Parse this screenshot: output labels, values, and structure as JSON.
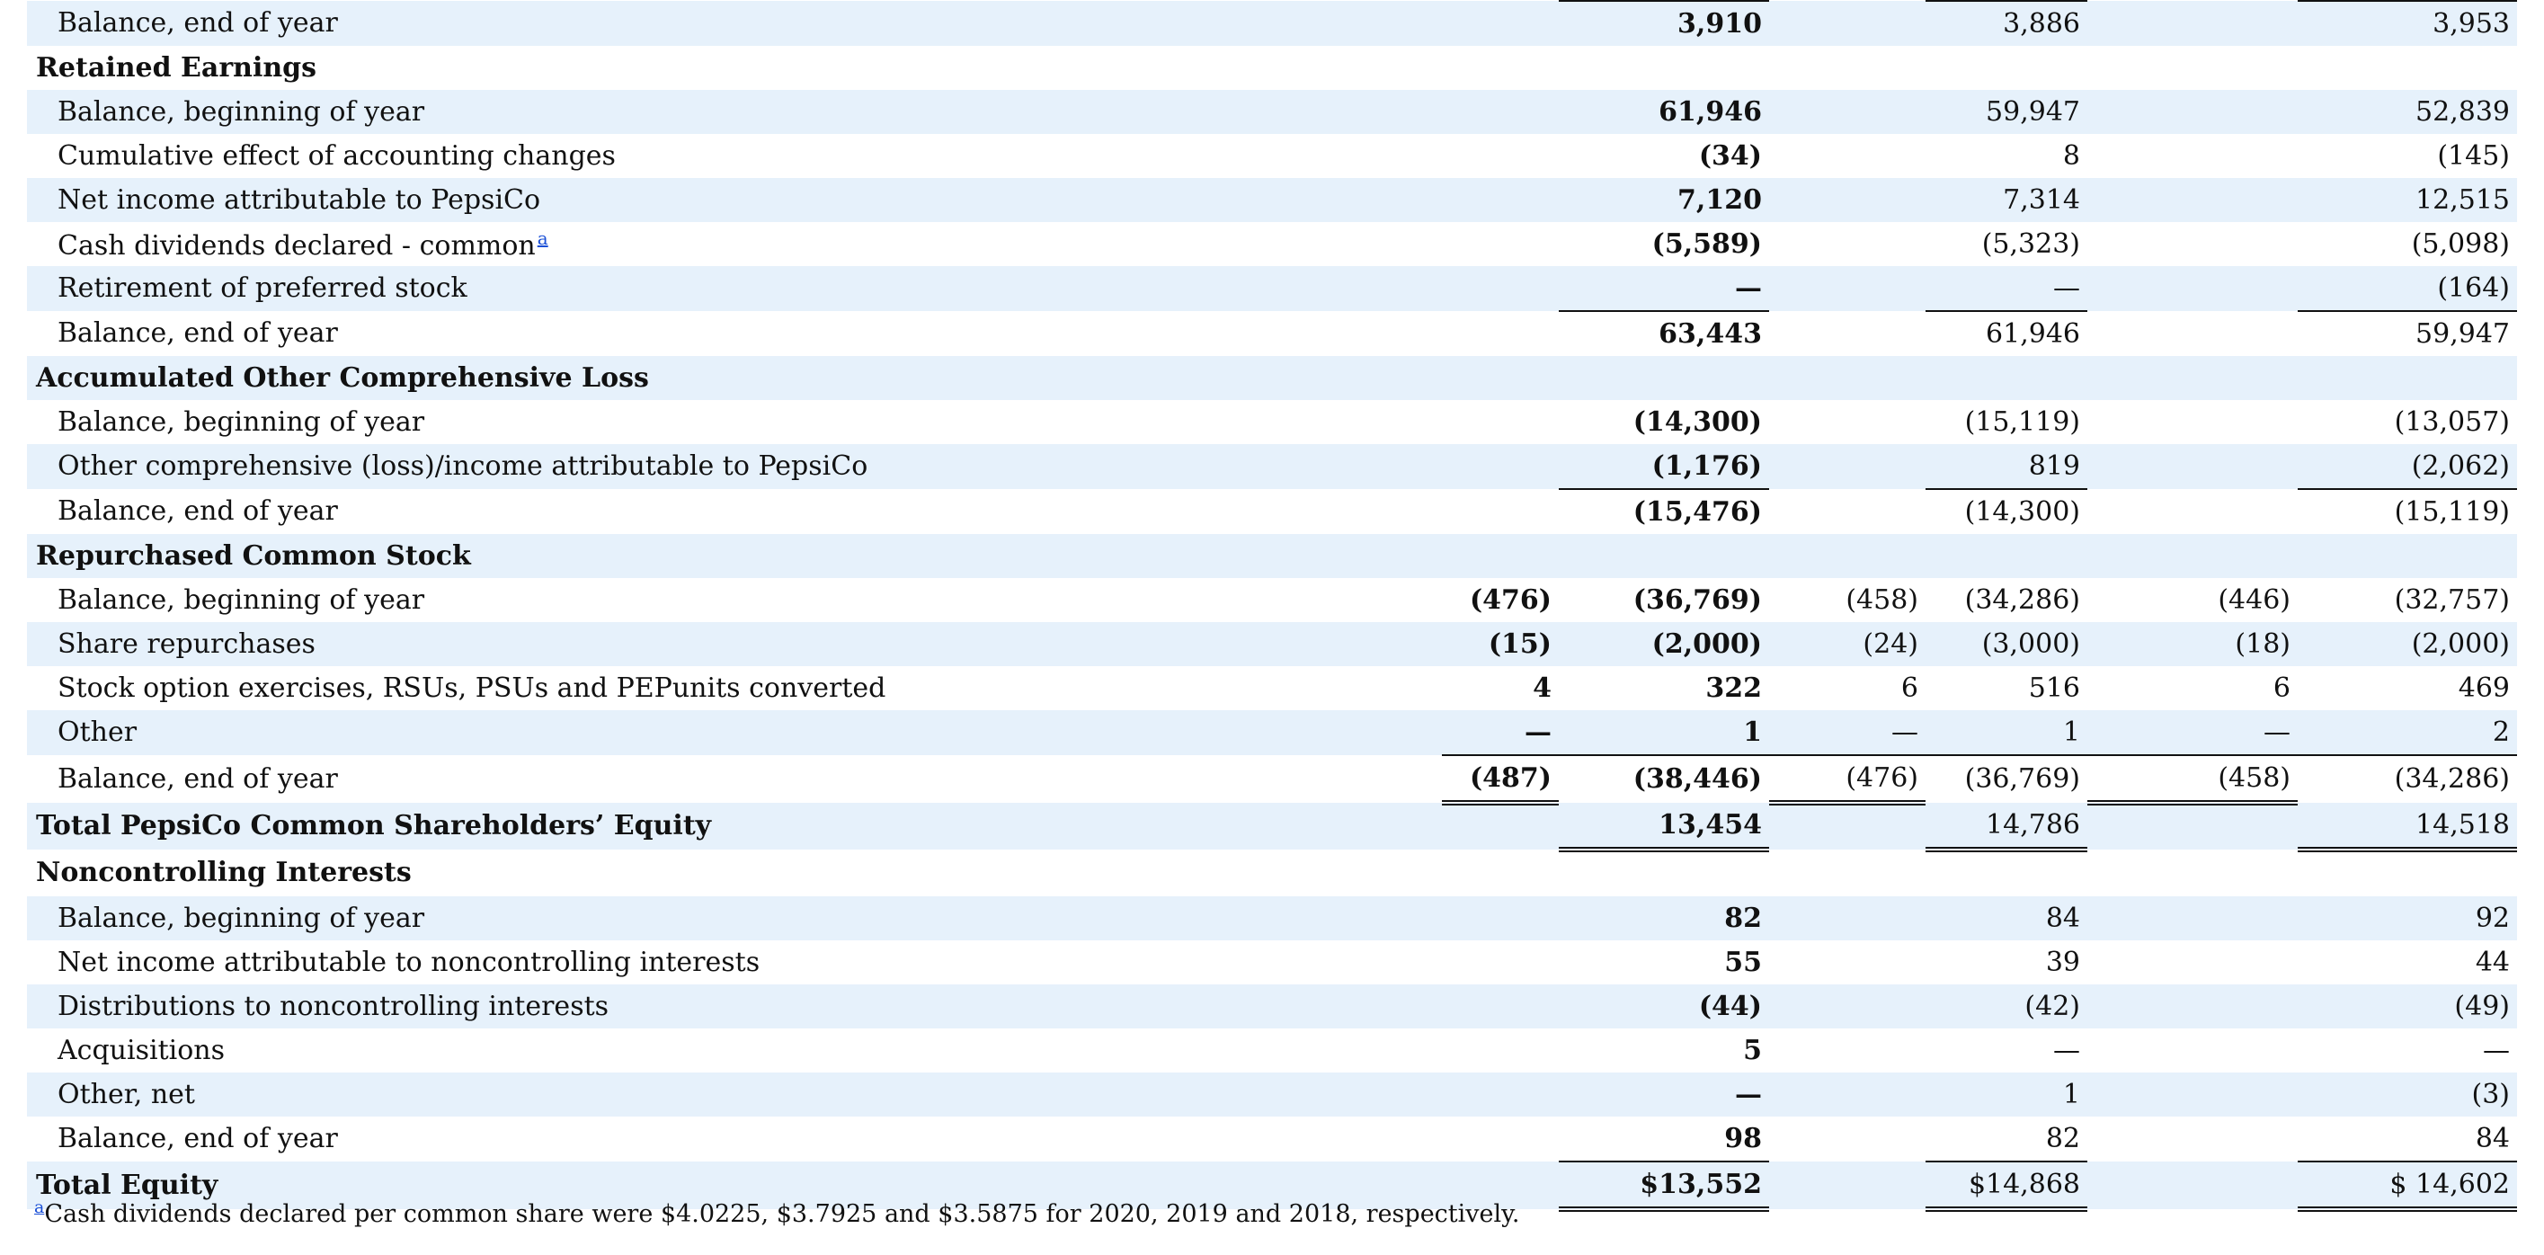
{
  "rows": [
    {
      "label": "Balance, end of year",
      "type": "item",
      "shade": true,
      "c": [
        "",
        "3,910",
        "",
        "3,886",
        "",
        "3,953"
      ],
      "ul": [
        false,
        true,
        false,
        true,
        false,
        true
      ]
    },
    {
      "label": "Retained Earnings",
      "type": "header",
      "shade": false,
      "c": [
        "",
        "",
        "",
        "",
        "",
        ""
      ]
    },
    {
      "label": "Balance, beginning of year",
      "type": "item",
      "shade": true,
      "c": [
        "",
        "61,946",
        "",
        "59,947",
        "",
        "52,839"
      ]
    },
    {
      "label": "Cumulative effect of accounting changes",
      "type": "item",
      "shade": false,
      "c": [
        "",
        "(34)",
        "",
        "8",
        "",
        "(145)"
      ]
    },
    {
      "label": "Net income attributable to PepsiCo",
      "type": "item",
      "shade": true,
      "c": [
        "",
        "7,120",
        "",
        "7,314",
        "",
        "12,515"
      ]
    },
    {
      "label": "Cash dividends declared - common",
      "footnote": "a",
      "type": "item",
      "shade": false,
      "c": [
        "",
        "(5,589)",
        "",
        "(5,323)",
        "",
        "(5,098)"
      ]
    },
    {
      "label": "Retirement of preferred stock",
      "type": "item",
      "shade": true,
      "c": [
        "",
        "—",
        "",
        "—",
        "",
        "(164)"
      ]
    },
    {
      "label": "Balance, end of year",
      "type": "item",
      "shade": false,
      "c": [
        "",
        "63,443",
        "",
        "61,946",
        "",
        "59,947"
      ],
      "ul": [
        false,
        true,
        false,
        true,
        false,
        true
      ]
    },
    {
      "label": "Accumulated Other Comprehensive Loss",
      "type": "header",
      "shade": true,
      "c": [
        "",
        "",
        "",
        "",
        "",
        ""
      ]
    },
    {
      "label": "Balance, beginning of year",
      "type": "item",
      "shade": false,
      "c": [
        "",
        "(14,300)",
        "",
        "(15,119)",
        "",
        "(13,057)"
      ]
    },
    {
      "label": "Other comprehensive (loss)/income attributable to PepsiCo",
      "type": "item",
      "shade": true,
      "c": [
        "",
        "(1,176)",
        "",
        "819",
        "",
        "(2,062)"
      ]
    },
    {
      "label": "Balance, end of year",
      "type": "item",
      "shade": false,
      "c": [
        "",
        "(15,476)",
        "",
        "(14,300)",
        "",
        "(15,119)"
      ],
      "ul": [
        false,
        true,
        false,
        true,
        false,
        true
      ]
    },
    {
      "label": "Repurchased Common Stock",
      "type": "header",
      "shade": true,
      "c": [
        "",
        "",
        "",
        "",
        "",
        ""
      ]
    },
    {
      "label": "Balance, beginning of year",
      "type": "item",
      "shade": false,
      "c": [
        "(476)",
        "(36,769)",
        "(458)",
        "(34,286)",
        "(446)",
        "(32,757)"
      ]
    },
    {
      "label": "Share repurchases",
      "type": "item",
      "shade": true,
      "c": [
        "(15)",
        "(2,000)",
        "(24)",
        "(3,000)",
        "(18)",
        "(2,000)"
      ]
    },
    {
      "label": "Stock option exercises, RSUs, PSUs and PEPunits converted",
      "type": "item",
      "shade": false,
      "c": [
        "4",
        "322",
        "6",
        "516",
        "6",
        "469"
      ]
    },
    {
      "label": "Other",
      "type": "item",
      "shade": true,
      "c": [
        "—",
        "1",
        "—",
        "1",
        "—",
        "2"
      ]
    },
    {
      "label": "Balance, end of year",
      "type": "item",
      "shade": false,
      "c": [
        "(487)",
        "(38,446)",
        "(476)",
        "(36,769)",
        "(458)",
        "(34,286)"
      ],
      "ul": [
        true,
        true,
        true,
        true,
        true,
        true
      ],
      "dul": [
        true,
        false,
        true,
        false,
        true,
        false
      ]
    },
    {
      "label": "Total PepsiCo Common Shareholders’ Equity",
      "type": "header",
      "shade": true,
      "c": [
        "",
        "13,454",
        "",
        "14,786",
        "",
        "14,518"
      ],
      "dul": [
        false,
        true,
        false,
        true,
        false,
        true
      ]
    },
    {
      "label": "Noncontrolling Interests",
      "type": "header",
      "shade": false,
      "c": [
        "",
        "",
        "",
        "",
        "",
        ""
      ]
    },
    {
      "label": "Balance, beginning of year",
      "type": "item",
      "shade": true,
      "c": [
        "",
        "82",
        "",
        "84",
        "",
        "92"
      ]
    },
    {
      "label": "Net income attributable to noncontrolling interests",
      "type": "item",
      "shade": false,
      "c": [
        "",
        "55",
        "",
        "39",
        "",
        "44"
      ]
    },
    {
      "label": "Distributions to noncontrolling interests",
      "type": "item",
      "shade": true,
      "c": [
        "",
        "(44)",
        "",
        "(42)",
        "",
        "(49)"
      ]
    },
    {
      "label": "Acquisitions",
      "type": "item",
      "shade": false,
      "c": [
        "",
        "5",
        "",
        "—",
        "",
        "—"
      ]
    },
    {
      "label": "Other, net",
      "type": "item",
      "shade": true,
      "c": [
        "",
        "—",
        "",
        "1",
        "",
        "(3)"
      ]
    },
    {
      "label": "Balance, end of year",
      "type": "item",
      "shade": false,
      "c": [
        "",
        "98",
        "",
        "82",
        "",
        "84"
      ]
    },
    {
      "label": "Total Equity",
      "type": "header",
      "shade": true,
      "c": [
        "",
        "$13,552",
        "",
        "$14,868",
        "",
        "$ 14,602"
      ],
      "ul": [
        false,
        true,
        false,
        true,
        false,
        true
      ],
      "dul": [
        false,
        true,
        false,
        true,
        false,
        true
      ]
    }
  ],
  "footnote": {
    "marker": "a",
    "text": "Cash dividends declared per common share were $4.0225, $3.7925 and $3.5875 for 2020, 2019 and 2018, respectively."
  }
}
